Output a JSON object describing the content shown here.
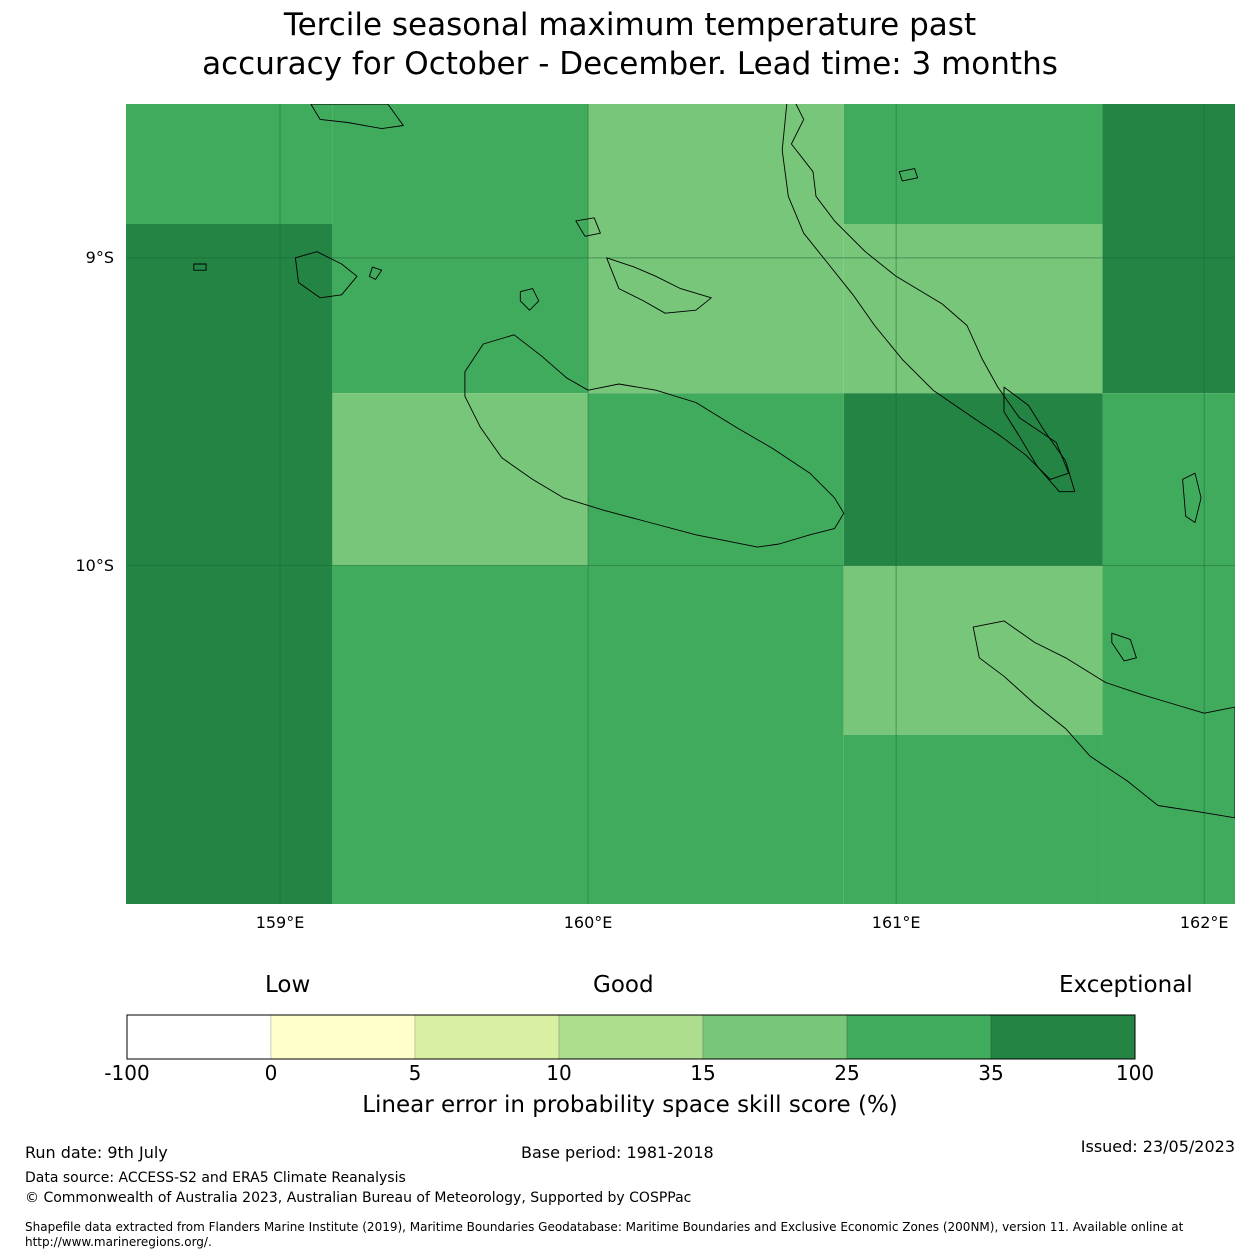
{
  "title": {
    "line1": "Tercile seasonal maximum temperature past",
    "line2": "accuracy for October - December. Lead time: 3 months"
  },
  "colors": {
    "land_outline": "#000000",
    "graticule": "#1e6b36"
  },
  "map": {
    "lon_range": [
      158.5,
      162.1
    ],
    "lat_range": [
      -11.1,
      -8.5
    ],
    "lat_ticks": [
      {
        "value": -9,
        "label": "9°S"
      },
      {
        "value": -10,
        "label": "10°S"
      }
    ],
    "lon_ticks": [
      {
        "value": 159,
        "label": "159°E"
      },
      {
        "value": 160,
        "label": "160°E"
      },
      {
        "value": 161,
        "label": "161°E"
      },
      {
        "value": 162,
        "label": "162°E"
      }
    ],
    "cells": [
      {
        "lon": [
          158.5,
          159.17
        ],
        "lat": [
          -8.89,
          -8.5
        ],
        "category": "25-35"
      },
      {
        "lon": [
          159.17,
          160.0
        ],
        "lat": [
          -8.89,
          -8.5
        ],
        "category": "25-35"
      },
      {
        "lon": [
          160.0,
          160.83
        ],
        "lat": [
          -8.89,
          -8.5
        ],
        "category": "15-25"
      },
      {
        "lon": [
          160.83,
          161.67
        ],
        "lat": [
          -8.89,
          -8.5
        ],
        "category": "25-35"
      },
      {
        "lon": [
          161.67,
          162.1
        ],
        "lat": [
          -8.89,
          -8.5
        ],
        "category": "35-100"
      },
      {
        "lon": [
          158.5,
          159.17
        ],
        "lat": [
          -11.1,
          -8.89
        ],
        "category": "35-100"
      },
      {
        "lon": [
          159.17,
          160.0
        ],
        "lat": [
          -9.44,
          -8.89
        ],
        "category": "25-35"
      },
      {
        "lon": [
          160.0,
          160.83
        ],
        "lat": [
          -9.44,
          -8.89
        ],
        "category": "15-25"
      },
      {
        "lon": [
          160.83,
          161.67
        ],
        "lat": [
          -9.44,
          -8.89
        ],
        "category": "15-25"
      },
      {
        "lon": [
          161.67,
          162.1
        ],
        "lat": [
          -9.44,
          -8.89
        ],
        "category": "35-100"
      },
      {
        "lon": [
          159.17,
          160.0
        ],
        "lat": [
          -10.0,
          -9.44
        ],
        "category": "15-25"
      },
      {
        "lon": [
          160.0,
          160.83
        ],
        "lat": [
          -10.0,
          -9.44
        ],
        "category": "25-35"
      },
      {
        "lon": [
          160.83,
          161.67
        ],
        "lat": [
          -10.0,
          -9.44
        ],
        "category": "35-100"
      },
      {
        "lon": [
          161.67,
          162.1
        ],
        "lat": [
          -10.0,
          -9.44
        ],
        "category": "25-35"
      },
      {
        "lon": [
          159.17,
          160.0
        ],
        "lat": [
          -11.1,
          -10.0
        ],
        "category": "25-35"
      },
      {
        "lon": [
          160.0,
          160.83
        ],
        "lat": [
          -11.1,
          -10.0
        ],
        "category": "25-35"
      },
      {
        "lon": [
          160.83,
          161.67
        ],
        "lat": [
          -10.55,
          -10.0
        ],
        "category": "15-25"
      },
      {
        "lon": [
          160.83,
          161.67
        ],
        "lat": [
          -11.1,
          -10.55
        ],
        "category": "25-35"
      },
      {
        "lon": [
          161.67,
          162.1
        ],
        "lat": [
          -11.1,
          -10.0
        ],
        "category": "25-35"
      }
    ],
    "coastlines": [
      {
        "name": "Guadalcanal",
        "points": [
          [
            159.6,
            -9.37
          ],
          [
            159.66,
            -9.28
          ],
          [
            159.76,
            -9.25
          ],
          [
            159.85,
            -9.32
          ],
          [
            159.93,
            -9.39
          ],
          [
            160.0,
            -9.43
          ],
          [
            160.1,
            -9.41
          ],
          [
            160.22,
            -9.43
          ],
          [
            160.35,
            -9.47
          ],
          [
            160.48,
            -9.55
          ],
          [
            160.6,
            -9.62
          ],
          [
            160.72,
            -9.7
          ],
          [
            160.8,
            -9.78
          ],
          [
            160.83,
            -9.83
          ],
          [
            160.8,
            -9.88
          ],
          [
            160.72,
            -9.9
          ],
          [
            160.62,
            -9.93
          ],
          [
            160.55,
            -9.94
          ],
          [
            160.45,
            -9.92
          ],
          [
            160.35,
            -9.9
          ],
          [
            160.2,
            -9.86
          ],
          [
            160.05,
            -9.82
          ],
          [
            159.92,
            -9.78
          ],
          [
            159.82,
            -9.72
          ],
          [
            159.72,
            -9.65
          ],
          [
            159.65,
            -9.55
          ],
          [
            159.6,
            -9.45
          ],
          [
            159.6,
            -9.37
          ]
        ]
      },
      {
        "name": "Malaita",
        "points": [
          [
            160.65,
            -8.45
          ],
          [
            160.7,
            -8.55
          ],
          [
            160.66,
            -8.63
          ],
          [
            160.73,
            -8.72
          ],
          [
            160.74,
            -8.8
          ],
          [
            160.8,
            -8.88
          ],
          [
            160.9,
            -8.98
          ],
          [
            161.0,
            -9.06
          ],
          [
            161.15,
            -9.15
          ],
          [
            161.23,
            -9.22
          ],
          [
            161.28,
            -9.33
          ],
          [
            161.33,
            -9.42
          ],
          [
            161.4,
            -9.52
          ],
          [
            161.52,
            -9.6
          ],
          [
            161.56,
            -9.7
          ],
          [
            161.5,
            -9.72
          ],
          [
            161.42,
            -9.64
          ],
          [
            161.34,
            -9.58
          ],
          [
            161.25,
            -9.52
          ],
          [
            161.12,
            -9.43
          ],
          [
            161.02,
            -9.33
          ],
          [
            160.93,
            -9.22
          ],
          [
            160.86,
            -9.12
          ],
          [
            160.78,
            -9.02
          ],
          [
            160.7,
            -8.92
          ],
          [
            160.65,
            -8.8
          ],
          [
            160.63,
            -8.65
          ],
          [
            160.65,
            -8.45
          ]
        ]
      },
      {
        "name": "Small Malaita",
        "points": [
          [
            161.35,
            -9.42
          ],
          [
            161.43,
            -9.48
          ],
          [
            161.48,
            -9.56
          ],
          [
            161.55,
            -9.66
          ],
          [
            161.58,
            -9.76
          ],
          [
            161.53,
            -9.76
          ],
          [
            161.46,
            -9.68
          ],
          [
            161.4,
            -9.58
          ],
          [
            161.35,
            -9.5
          ],
          [
            161.35,
            -9.42
          ]
        ]
      },
      {
        "name": "Makira",
        "points": [
          [
            161.25,
            -10.2
          ],
          [
            161.35,
            -10.18
          ],
          [
            161.45,
            -10.25
          ],
          [
            161.55,
            -10.3
          ],
          [
            161.68,
            -10.38
          ],
          [
            161.8,
            -10.42
          ],
          [
            161.9,
            -10.45
          ],
          [
            162.0,
            -10.48
          ],
          [
            162.1,
            -10.46
          ],
          [
            162.1,
            -10.82
          ],
          [
            161.98,
            -10.8
          ],
          [
            161.85,
            -10.78
          ],
          [
            161.75,
            -10.7
          ],
          [
            161.63,
            -10.62
          ],
          [
            161.55,
            -10.53
          ],
          [
            161.45,
            -10.45
          ],
          [
            161.35,
            -10.36
          ],
          [
            161.27,
            -10.3
          ],
          [
            161.25,
            -10.2
          ]
        ]
      },
      {
        "name": "Florida Islands",
        "points": [
          [
            160.06,
            -9.0
          ],
          [
            160.15,
            -9.03
          ],
          [
            160.22,
            -9.06
          ],
          [
            160.3,
            -9.1
          ],
          [
            160.4,
            -9.13
          ],
          [
            160.35,
            -9.17
          ],
          [
            160.25,
            -9.18
          ],
          [
            160.18,
            -9.14
          ],
          [
            160.1,
            -9.1
          ],
          [
            160.06,
            -9.0
          ]
        ]
      },
      {
        "name": "Russell Islands",
        "points": [
          [
            159.05,
            -9.0
          ],
          [
            159.12,
            -8.98
          ],
          [
            159.2,
            -9.02
          ],
          [
            159.25,
            -9.06
          ],
          [
            159.2,
            -9.12
          ],
          [
            159.13,
            -9.13
          ],
          [
            159.06,
            -9.08
          ],
          [
            159.05,
            -9.0
          ]
        ]
      },
      {
        "name": "Savo",
        "points": [
          [
            159.78,
            -9.11
          ],
          [
            159.82,
            -9.1
          ],
          [
            159.84,
            -9.14
          ],
          [
            159.81,
            -9.17
          ],
          [
            159.78,
            -9.14
          ],
          [
            159.78,
            -9.11
          ]
        ]
      },
      {
        "name": "Ulawa",
        "points": [
          [
            161.93,
            -9.72
          ],
          [
            161.97,
            -9.7
          ],
          [
            161.99,
            -9.78
          ],
          [
            161.97,
            -9.86
          ],
          [
            161.94,
            -9.84
          ],
          [
            161.93,
            -9.72
          ]
        ]
      },
      {
        "name": "Ugi",
        "points": [
          [
            161.7,
            -10.22
          ],
          [
            161.76,
            -10.24
          ],
          [
            161.78,
            -10.3
          ],
          [
            161.74,
            -10.31
          ],
          [
            161.7,
            -10.25
          ],
          [
            161.7,
            -10.22
          ]
        ]
      },
      {
        "name": "Ngella islet",
        "points": [
          [
            159.96,
            -8.88
          ],
          [
            160.02,
            -8.87
          ],
          [
            160.04,
            -8.92
          ],
          [
            159.99,
            -8.93
          ],
          [
            159.96,
            -8.88
          ]
        ]
      },
      {
        "name": "Malaita north islet",
        "points": [
          [
            161.01,
            -8.72
          ],
          [
            161.06,
            -8.71
          ],
          [
            161.07,
            -8.74
          ],
          [
            161.02,
            -8.75
          ],
          [
            161.01,
            -8.72
          ]
        ]
      },
      {
        "name": "New Georgia south tip",
        "points": [
          [
            159.1,
            -8.5
          ],
          [
            159.35,
            -8.5
          ],
          [
            159.4,
            -8.57
          ],
          [
            159.33,
            -8.58
          ],
          [
            159.22,
            -8.56
          ],
          [
            159.13,
            -8.55
          ],
          [
            159.1,
            -8.5
          ]
        ]
      },
      {
        "name": "Mbanika islet",
        "points": [
          [
            158.72,
            -9.02
          ],
          [
            158.76,
            -9.02
          ],
          [
            158.76,
            -9.04
          ],
          [
            158.72,
            -9.04
          ],
          [
            158.72,
            -9.02
          ]
        ]
      },
      {
        "name": "Pavuvu islet",
        "points": [
          [
            159.3,
            -9.03
          ],
          [
            159.33,
            -9.04
          ],
          [
            159.31,
            -9.07
          ],
          [
            159.29,
            -9.06
          ],
          [
            159.3,
            -9.03
          ]
        ]
      }
    ]
  },
  "colorbar": {
    "headers": [
      "Low",
      "Good",
      "Exceptional"
    ],
    "segments": [
      {
        "from": "-100",
        "to": "0",
        "color": "#ffffff",
        "category": "-100-0"
      },
      {
        "from": "0",
        "to": "5",
        "color": "#ffffcc",
        "category": "0-5"
      },
      {
        "from": "5",
        "to": "10",
        "color": "#d9f0a3",
        "category": "5-10"
      },
      {
        "from": "10",
        "to": "15",
        "color": "#addd8e",
        "category": "10-15"
      },
      {
        "from": "15",
        "to": "25",
        "color": "#78c679",
        "category": "15-25"
      },
      {
        "from": "25",
        "to": "35",
        "color": "#41ab5d",
        "category": "25-35"
      },
      {
        "from": "35",
        "to": "100",
        "color": "#238443",
        "category": "35-100"
      }
    ],
    "ticks": [
      "-100",
      "0",
      "5",
      "10",
      "15",
      "25",
      "35",
      "100"
    ],
    "label": "Linear error in probability space skill score (%)"
  },
  "footer": {
    "run_date": "Run date: 9th July",
    "base_period": "Base period: 1981-2018",
    "issued": "Issued: 23/05/2023",
    "data_source": "Data source: ACCESS-S2 and ERA5 Climate Reanalysis",
    "copyright": "© Commonwealth of Australia 2023, Australian Bureau of Meteorology, Supported by COSPPac",
    "shapefile": "Shapefile data extracted from Flanders Marine Institute (2019), Maritime Boundaries Geodatabase: Maritime Boundaries and Exclusive Economic Zones (200NM), version 11. Available online at http://www.marineregions.org/."
  }
}
